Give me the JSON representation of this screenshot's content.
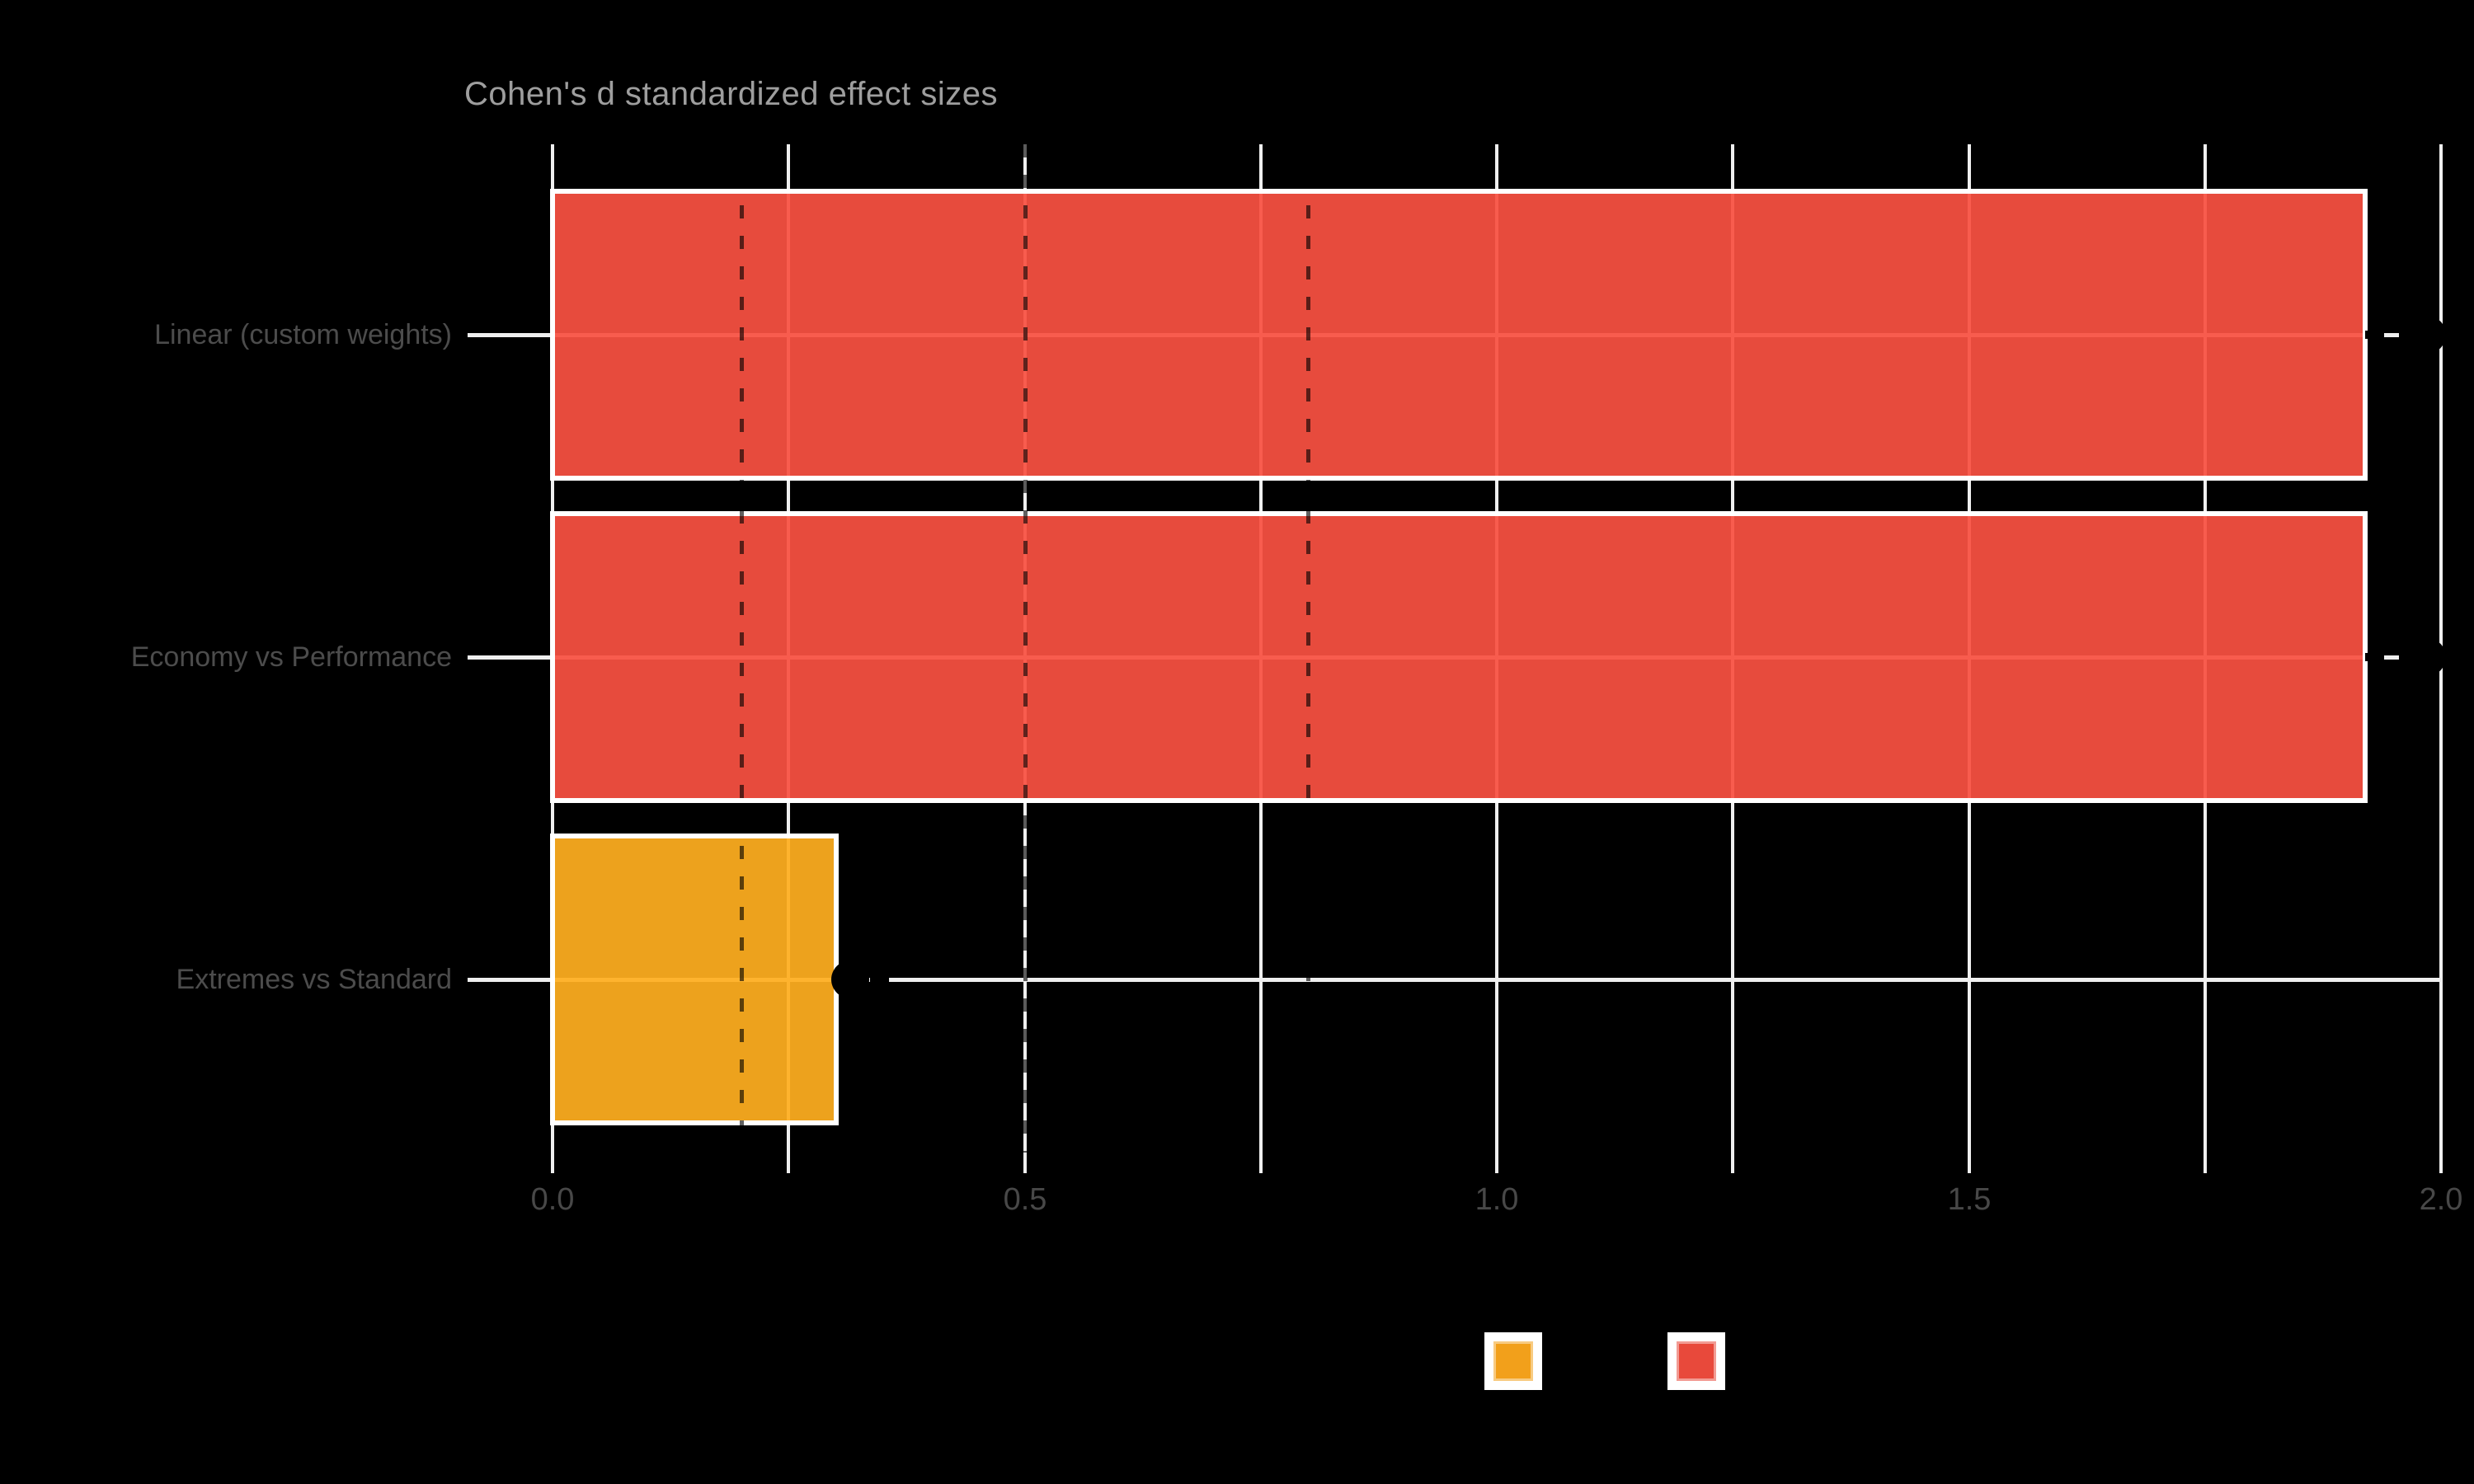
{
  "title": "Cohen's d standardized effect sizes",
  "chart_data": {
    "type": "bar",
    "orientation": "horizontal",
    "background": "#000000",
    "categories": [
      "Linear (custom weights)",
      "Economy vs Performance",
      "Extremes vs Standard"
    ],
    "values": [
      1.92,
      1.92,
      0.3
    ],
    "bar_fill_colors": [
      "#F95142",
      "#F95142",
      "#FFAE1F"
    ],
    "bar_fill_opacity": 0.93,
    "bar_outline_color": "#ffffff",
    "point_values": [
      1.985,
      1.985,
      0.315
    ],
    "point_color": "#000000",
    "whisker_upper": [
      2.01,
      2.01,
      0.365
    ],
    "whisker_style": "dashed-black",
    "reference_lines": [
      0.2,
      0.5,
      0.8
    ],
    "reference_line_style": "dashed dark",
    "xlim": [
      0.0,
      2.025
    ],
    "x_major_ticks": [
      0.0,
      0.5,
      1.0,
      1.5,
      2.0
    ],
    "x_major_labels": [
      "0.0",
      "0.5",
      "1.0",
      "1.5",
      "2.0"
    ],
    "x_minor_ticks": [
      0.25,
      0.75,
      1.25,
      1.75
    ],
    "grid": "white major+minor vertical, white horizontal at each category",
    "legend_position": "bottom-center",
    "legend_swatches": [
      {
        "name": "orange-group",
        "color": "#F2A01B"
      },
      {
        "name": "red-group",
        "color": "#E8493B"
      }
    ]
  },
  "colors": {
    "title_text": "#9e9e9e",
    "axis_label_text": "#4c4c4c",
    "gridline": "#efefef"
  }
}
